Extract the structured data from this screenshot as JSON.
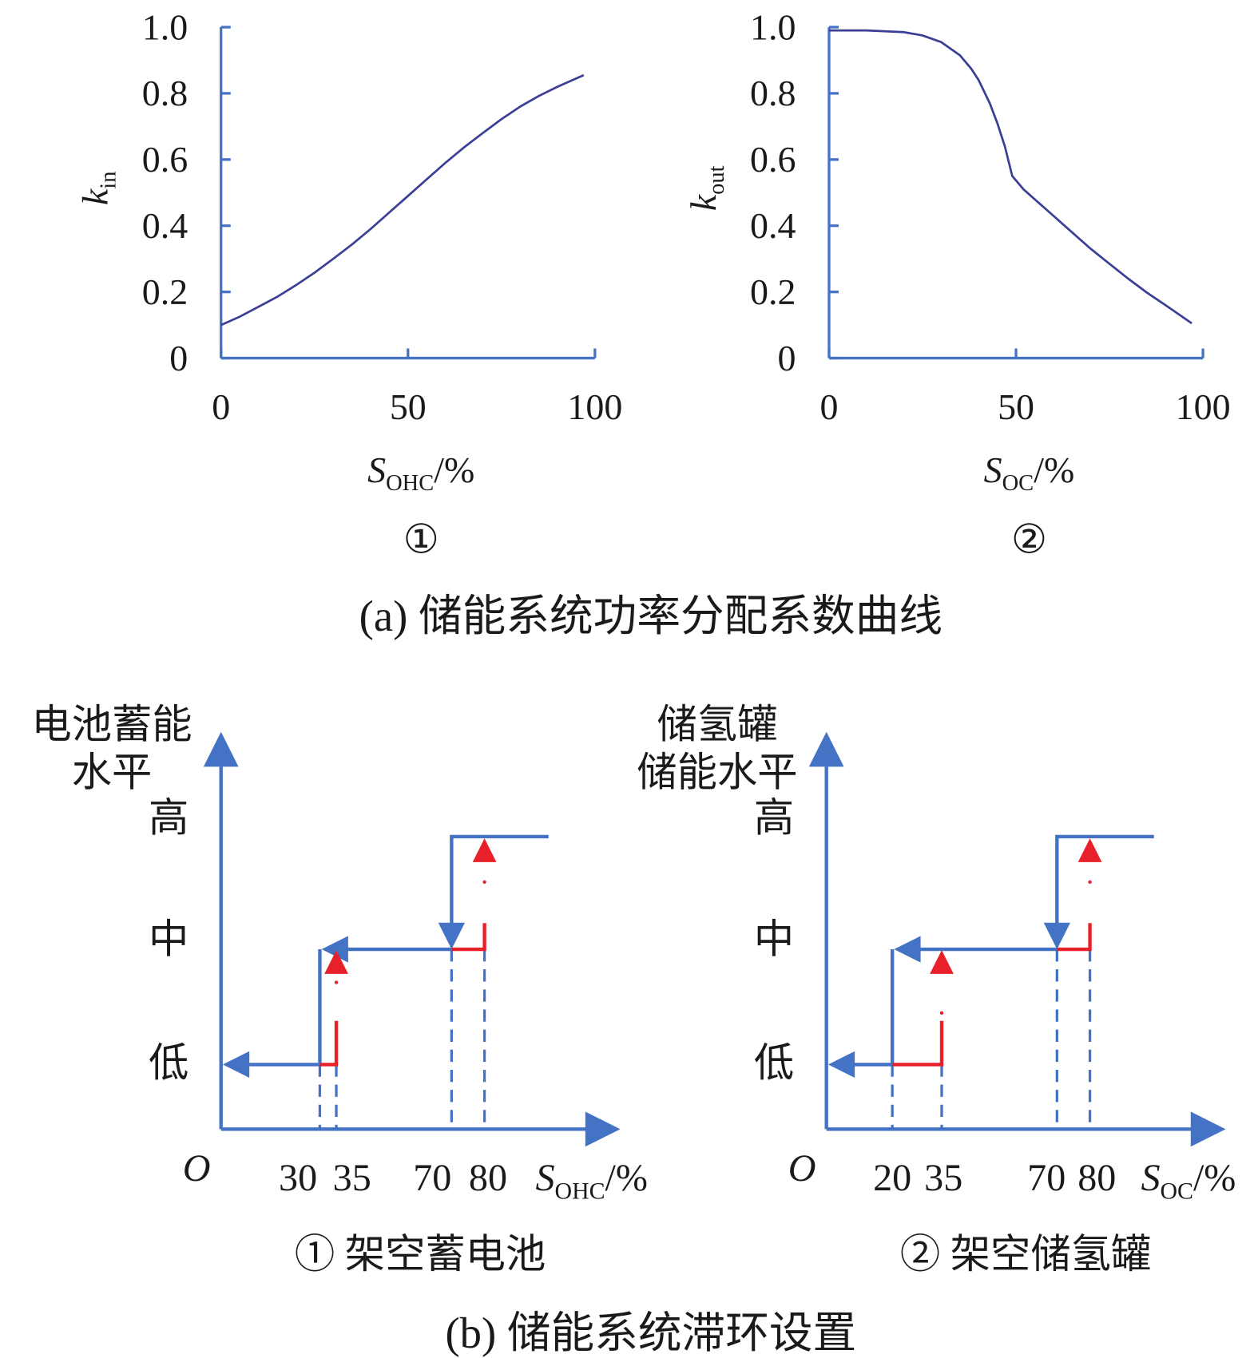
{
  "colors": {
    "axis": "#4472c4",
    "curve": "#3b3f95",
    "red": "#e8202a",
    "text": "#1a1a1a"
  },
  "chart_data": [
    {
      "type": "line",
      "panel_label": "①",
      "ylabel_main": "k",
      "ylabel_sub": "in",
      "xlabel_main": "S",
      "xlabel_sub": "OHC",
      "xlabel_unit": "/%",
      "xlim": [
        0,
        100
      ],
      "ylim": [
        0,
        1.0
      ],
      "xticks": [
        "0",
        "50",
        "100"
      ],
      "yticks": [
        "0",
        "0.2",
        "0.4",
        "0.6",
        "0.8",
        "1.0"
      ],
      "x": [
        0,
        5,
        10,
        15,
        20,
        25,
        30,
        35,
        40,
        45,
        50,
        55,
        60,
        65,
        70,
        75,
        80,
        85,
        90,
        97
      ],
      "y": [
        0.1,
        0.125,
        0.155,
        0.185,
        0.22,
        0.258,
        0.3,
        0.343,
        0.39,
        0.44,
        0.49,
        0.54,
        0.59,
        0.637,
        0.68,
        0.722,
        0.76,
        0.792,
        0.82,
        0.855
      ]
    },
    {
      "type": "line",
      "panel_label": "②",
      "ylabel_main": "k",
      "ylabel_sub": "out",
      "xlabel_main": "S",
      "xlabel_sub": "OC",
      "xlabel_unit": "/%",
      "xlim": [
        0,
        100
      ],
      "ylim": [
        0,
        1.0
      ],
      "xticks": [
        "0",
        "50",
        "100"
      ],
      "yticks": [
        "0",
        "0.2",
        "0.4",
        "0.6",
        "0.8",
        "1.0"
      ],
      "x": [
        0,
        10,
        20,
        25,
        30,
        35,
        38,
        40,
        43,
        45,
        47,
        49,
        52,
        55,
        60,
        65,
        70,
        75,
        80,
        85,
        90,
        97
      ],
      "y": [
        0.99,
        0.99,
        0.985,
        0.975,
        0.955,
        0.915,
        0.875,
        0.84,
        0.77,
        0.71,
        0.64,
        0.55,
        0.51,
        0.48,
        0.43,
        0.38,
        0.33,
        0.285,
        0.24,
        0.198,
        0.16,
        0.105
      ]
    }
  ],
  "caption_a": "(a) 储能系统功率分配系数曲线",
  "hysteresis": [
    {
      "panel_label": "① 架空蓄电池",
      "ylabel_lines": [
        "电池蓄能",
        "水平"
      ],
      "levels": [
        "高",
        "中",
        "低"
      ],
      "origin": "O",
      "xlabel_main": "S",
      "xlabel_sub": "OHC",
      "xlabel_unit": "/%",
      "thresholds": {
        "low_down": 30,
        "low_up": 35,
        "high_down": 70,
        "high_up": 80
      },
      "tick_labels": [
        "30",
        "35",
        "70",
        "80"
      ]
    },
    {
      "panel_label": "② 架空储氢罐",
      "ylabel_lines": [
        "储氢罐",
        "储能水平"
      ],
      "levels": [
        "高",
        "中",
        "低"
      ],
      "origin": "O",
      "xlabel_main": "S",
      "xlabel_sub": "OC",
      "xlabel_unit": "/%",
      "thresholds": {
        "low_down": 20,
        "low_up": 35,
        "high_down": 70,
        "high_up": 80
      },
      "tick_labels": [
        "20",
        "35",
        "70",
        "80"
      ]
    }
  ],
  "caption_b": "(b) 储能系统滞环设置"
}
